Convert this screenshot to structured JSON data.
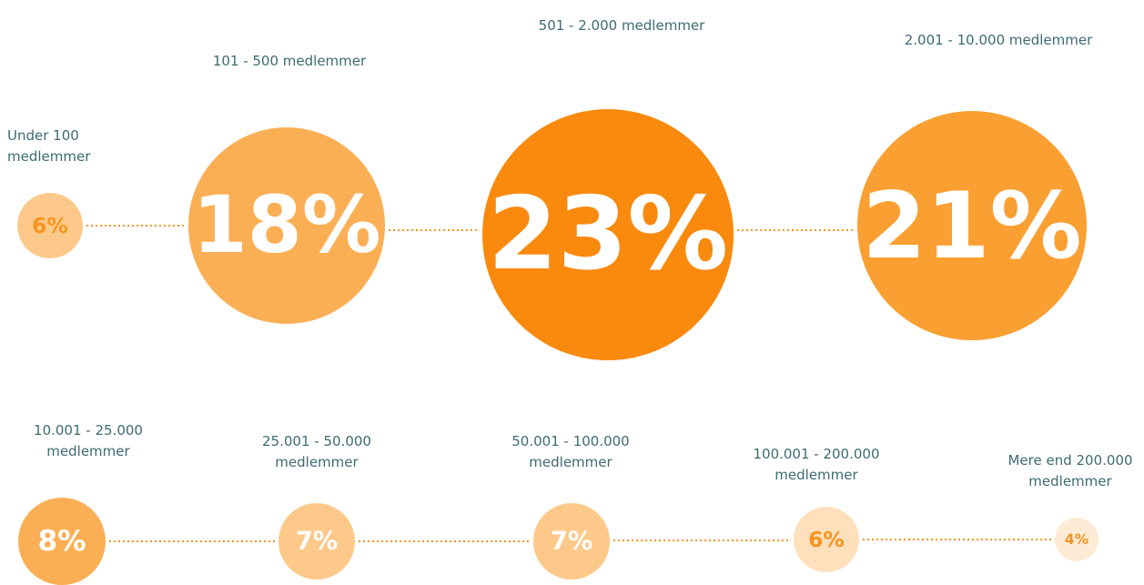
{
  "chart_data": {
    "type": "bubble",
    "categories": [
      "Under 100 medlemmer",
      "101 - 500 medlemmer",
      "501 - 2.000 medlemmer",
      "2.001 - 10.000 medlemmer",
      "10.001 - 25.000 medlemmer",
      "25.001 - 50.000 medlemmer",
      "50.001 - 100.000 medlemmer",
      "100.001 - 200.000 medlemmer",
      "Mere end 200.000 medlemmer"
    ],
    "values": [
      6,
      18,
      23,
      21,
      8,
      7,
      7,
      6,
      4
    ],
    "value_labels": [
      "6%",
      "18%",
      "23%",
      "21%",
      "8%",
      "7%",
      "7%",
      "6%",
      "4%"
    ],
    "colors": [
      "#fdc98a",
      "#fbaf55",
      "#f98a0e",
      "#fa9f32",
      "#fbaf55",
      "#fdc98a",
      "#fdc98a",
      "#fee0bd",
      "#feebd5"
    ],
    "label_colors": [
      "#f7941d",
      "#ffffff",
      "#ffffff",
      "#ffffff",
      "#ffffff",
      "#ffffff",
      "#ffffff",
      "#f7941d",
      "#f7941d"
    ]
  }
}
